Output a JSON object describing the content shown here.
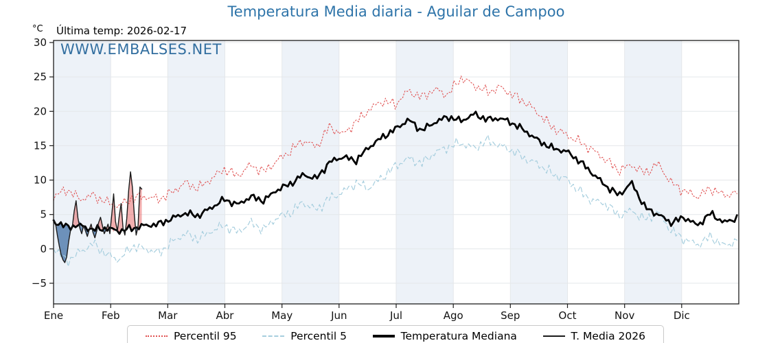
{
  "figure": {
    "title": "Temperatura Media diaria - Aguilar de Campoo",
    "subtitle": "Última temp: 2026-02-17",
    "watermark": "WWW.EMBALSES.NET",
    "y_unit": "°C",
    "title_color": "#2e74a9",
    "watermark_color": "#336fa0"
  },
  "legend": {
    "items": [
      {
        "label": "Percentil 95"
      },
      {
        "label": "Percentil 5"
      },
      {
        "label": "Temperatura Mediana"
      },
      {
        "label": "T. Media 2026"
      }
    ]
  },
  "chart_data": {
    "type": "line",
    "title": "Temperatura Media diaria - Aguilar de Campoo",
    "annotation": "Última temp: 2026-02-17",
    "ylabel": "°C",
    "xlabel": "",
    "grid": true,
    "grid_color": "#e4e7ea",
    "band_fill": "#edf2f8",
    "axis_color": "#1c1c1c",
    "legend_position": "bottom",
    "x_tick_labels": [
      "Ene",
      "Feb",
      "Mar",
      "Abr",
      "May",
      "Jun",
      "Jul",
      "Ago",
      "Sep",
      "Oct",
      "Nov",
      "Dic"
    ],
    "yticks": [
      30,
      25,
      20,
      15,
      10,
      5,
      0,
      -5
    ],
    "ylim": [
      -8,
      30.3
    ],
    "xlim_days": [
      0,
      365
    ],
    "x_days": [
      0,
      7,
      14,
      21,
      28,
      35,
      42,
      49,
      56,
      63,
      70,
      77,
      84,
      91,
      98,
      105,
      112,
      119,
      126,
      133,
      140,
      147,
      154,
      161,
      168,
      175,
      182,
      189,
      196,
      203,
      210,
      217,
      224,
      231,
      238,
      245,
      252,
      259,
      266,
      273,
      280,
      287,
      294,
      301,
      308,
      315,
      322,
      329,
      336,
      343,
      350,
      357,
      364
    ],
    "series": [
      {
        "name": "Percentil 95",
        "type": "dotted",
        "color": "#e04f4f",
        "width": 1.1,
        "values": [
          7.5,
          8.7,
          7.2,
          7.8,
          6.8,
          6.2,
          7.4,
          7.6,
          7.2,
          8.2,
          9.6,
          8.8,
          10.2,
          11.6,
          10.6,
          12.2,
          11.2,
          12.8,
          14.2,
          15.8,
          14.8,
          17.8,
          16.6,
          18.4,
          20.2,
          21.5,
          21.0,
          23.0,
          22.0,
          23.2,
          22.4,
          24.9,
          23.8,
          22.8,
          23.5,
          22.3,
          21.2,
          19.5,
          17.6,
          16.6,
          15.6,
          14.4,
          13.0,
          11.4,
          12.2,
          11.0,
          12.4,
          9.6,
          8.4,
          7.6,
          8.8,
          7.8,
          8.2
        ]
      },
      {
        "name": "Percentil 5",
        "type": "dashed",
        "color": "#a6cede",
        "width": 1.2,
        "values": [
          0.2,
          -1.8,
          -0.5,
          0.8,
          -0.8,
          -1.6,
          0.4,
          0.0,
          -0.6,
          1.0,
          2.2,
          1.4,
          2.6,
          3.4,
          2.4,
          3.8,
          2.8,
          4.6,
          5.2,
          6.8,
          5.6,
          7.4,
          8.2,
          9.6,
          8.8,
          10.4,
          12.0,
          13.2,
          12.4,
          14.0,
          14.8,
          15.4,
          14.6,
          15.8,
          15.0,
          14.2,
          13.0,
          12.2,
          10.8,
          10.2,
          8.4,
          7.0,
          6.6,
          4.8,
          5.6,
          4.2,
          5.4,
          2.6,
          1.4,
          0.6,
          1.8,
          0.4,
          1.2
        ]
      },
      {
        "name": "Temperatura Mediana",
        "type": "solid",
        "color": "#000000",
        "width": 2.8,
        "values": [
          4.0,
          3.2,
          3.4,
          2.8,
          3.0,
          2.6,
          3.0,
          3.4,
          3.6,
          4.4,
          5.2,
          4.8,
          6.0,
          7.2,
          6.4,
          7.6,
          7.0,
          8.6,
          9.4,
          10.8,
          10.2,
          12.6,
          13.4,
          12.8,
          14.8,
          16.2,
          17.4,
          18.8,
          17.2,
          18.4,
          19.2,
          18.6,
          19.6,
          18.8,
          19.0,
          18.2,
          17.0,
          15.6,
          14.6,
          14.2,
          12.8,
          11.0,
          9.2,
          7.8,
          9.6,
          6.0,
          5.0,
          3.8,
          4.6,
          3.4,
          5.2,
          3.8,
          4.5
        ]
      },
      {
        "name": "T. Media 2026",
        "type": "solid",
        "color": "#1a1a1a",
        "width": 1.4,
        "x_days": [
          0,
          1,
          2,
          3,
          4,
          5,
          6,
          7,
          8,
          9,
          10,
          11,
          12,
          13,
          14,
          15,
          16,
          17,
          18,
          19,
          20,
          21,
          22,
          23,
          24,
          25,
          26,
          27,
          28,
          29,
          30,
          31,
          32,
          33,
          34,
          35,
          36,
          37,
          38,
          39,
          40,
          41,
          42,
          43,
          44,
          45,
          46,
          47
        ],
        "values": [
          4.2,
          3.8,
          2.0,
          0.5,
          -0.8,
          -1.6,
          -2.0,
          -1.2,
          1.0,
          2.6,
          3.2,
          5.5,
          7.0,
          4.5,
          3.0,
          2.2,
          3.4,
          2.6,
          1.8,
          2.8,
          3.6,
          2.4,
          1.6,
          2.6,
          3.8,
          4.6,
          3.4,
          2.2,
          2.8,
          3.6,
          2.2,
          5.0,
          8.0,
          4.0,
          2.6,
          4.8,
          6.6,
          3.0,
          2.0,
          4.4,
          8.5,
          11.2,
          9.0,
          5.0,
          2.0,
          3.2,
          9.0,
          8.7
        ],
        "fill_vs": "Temperatura Mediana",
        "fill_above": "rgba(229,96,96,0.5)",
        "fill_below": "rgba(54,104,160,0.7)"
      }
    ]
  }
}
